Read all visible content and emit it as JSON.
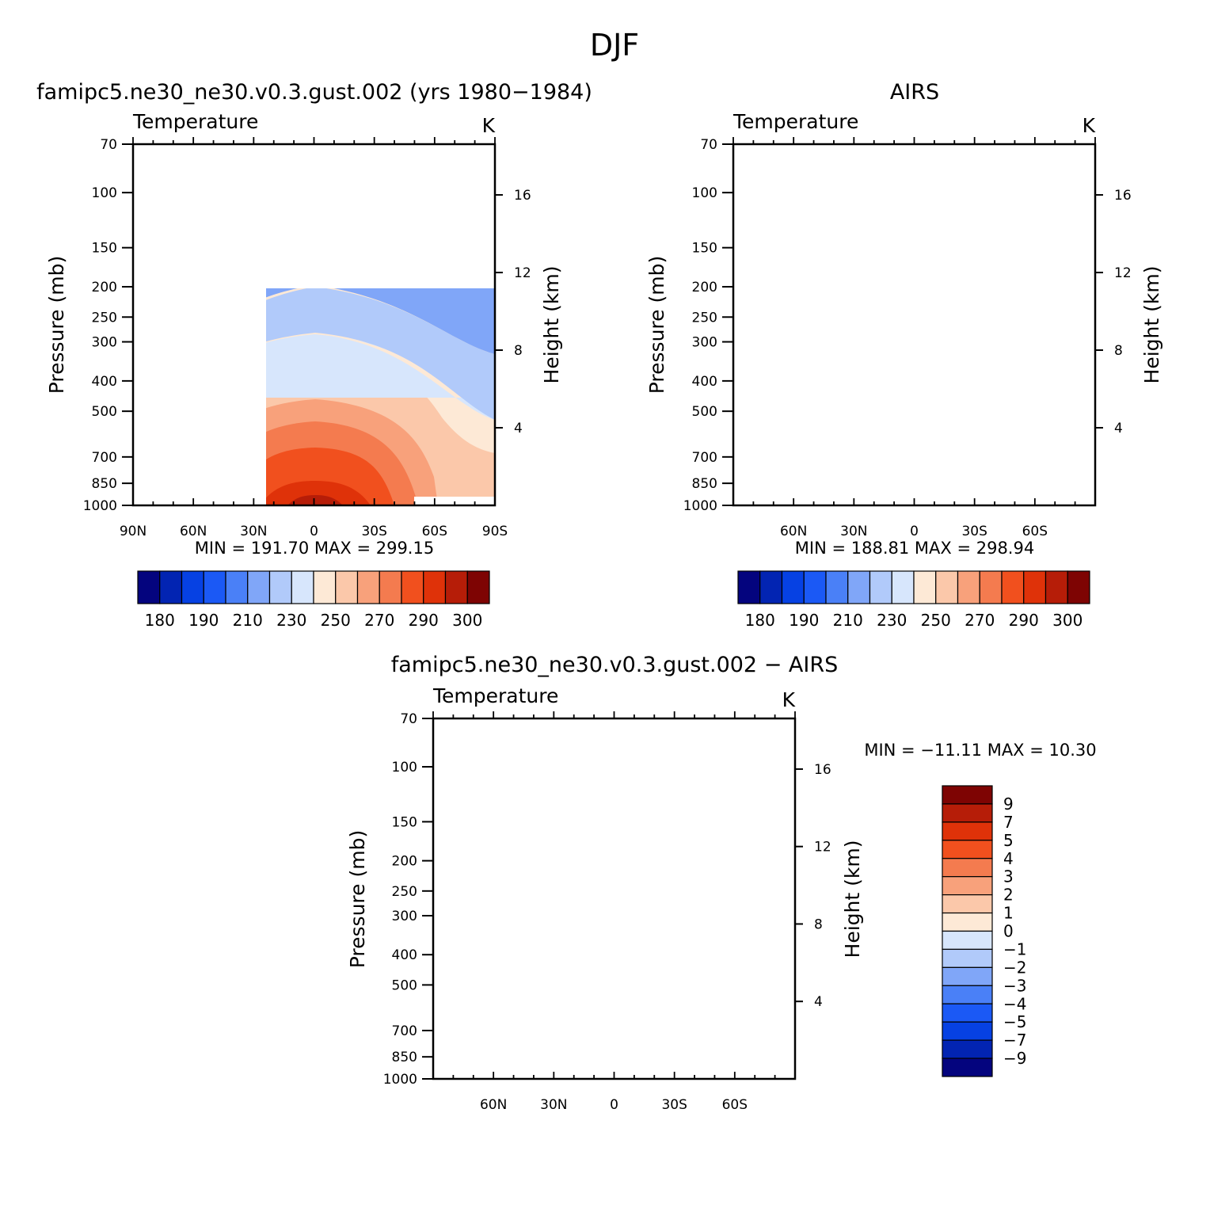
{
  "figure": {
    "title": "DJF"
  },
  "colors": {
    "temp_scale": [
      "#04047e",
      "#0224b2",
      "#0641e3",
      "#1b59f5",
      "#4a80f7",
      "#80a6f8",
      "#b1cafa",
      "#d7e6fc",
      "#fde9d6",
      "#fbc8aa",
      "#f8a17b",
      "#f47b4f",
      "#f1501e",
      "#df3209",
      "#b61d08",
      "#7e0403"
    ],
    "diff_scale": [
      "#04047e",
      "#0224b2",
      "#0641e3",
      "#1b59f5",
      "#4a80f7",
      "#80a6f8",
      "#b1cafa",
      "#d7e6fc",
      "#fde9d6",
      "#fbc8aa",
      "#f8a17b",
      "#f47b4f",
      "#f1501e",
      "#df3209",
      "#b61d08",
      "#7e0403"
    ]
  },
  "panels": [
    {
      "title": "famipc5.ne30_ne30.v0.3.gust.002 (yrs 1980−1984)",
      "variable": "Temperature",
      "units": "K",
      "ylabel": "Pressure (mb)",
      "y2label": "Height (km)",
      "minmax": "MIN = 191.70   MAX = 299.15",
      "cbar_labels": [
        "180",
        "190",
        "210",
        "230",
        "250",
        "270",
        "290",
        "300"
      ]
    },
    {
      "title": "AIRS",
      "variable": "Temperature",
      "units": "K",
      "ylabel": "Pressure (mb)",
      "y2label": "Height (km)",
      "minmax": "MIN = 188.81   MAX = 298.94",
      "cbar_labels": [
        "180",
        "190",
        "210",
        "230",
        "250",
        "270",
        "290",
        "300"
      ]
    },
    {
      "title": "famipc5.ne30_ne30.v0.3.gust.002 − AIRS",
      "variable": "Temperature",
      "units": "K",
      "ylabel": "Pressure (mb)",
      "y2label": "Height (km)",
      "minmax": "MIN = −11.11   MAX =  10.30",
      "cbar_labels": [
        "9",
        "7",
        "5",
        "4",
        "3",
        "2",
        "1",
        "0",
        "−1",
        "−2",
        "−3",
        "−4",
        "−5",
        "−7",
        "−9"
      ]
    }
  ],
  "chart_data": [
    {
      "type": "heatmap",
      "title": "famipc5.ne30_ne30.v0.3.gust.002 (yrs 1980−1984)",
      "xlabel": "",
      "ylabel": "Pressure (mb)",
      "y2label": "Height (km)",
      "x_ticks": [
        "90N",
        "60N",
        "30N",
        "0",
        "30S",
        "60S",
        "90S"
      ],
      "x_tick_values": [
        90,
        60,
        30,
        0,
        -30,
        -60,
        -90
      ],
      "xlim": [
        90,
        -90
      ],
      "y_ticks": [
        "70",
        "100",
        "150",
        "200",
        "250",
        "300",
        "400",
        "500",
        "700",
        "850",
        "1000"
      ],
      "y_scale": "log",
      "ylim": [
        1000,
        70
      ],
      "y2_ticks": [
        "4",
        "8",
        "12",
        "16"
      ],
      "contour_levels": [
        180,
        185,
        190,
        200,
        210,
        220,
        230,
        240,
        250,
        260,
        270,
        280,
        290,
        295,
        300
      ],
      "min": 191.7,
      "max": 299.15,
      "units": "K"
    },
    {
      "type": "heatmap",
      "title": "AIRS",
      "xlabel": "",
      "ylabel": "Pressure (mb)",
      "y2label": "Height (km)",
      "x_ticks": [
        "60N",
        "30N",
        "0",
        "30S",
        "60S"
      ],
      "x_tick_values": [
        60,
        30,
        0,
        -30,
        -60
      ],
      "xlim": [
        90,
        -90
      ],
      "y_ticks": [
        "70",
        "100",
        "150",
        "200",
        "250",
        "300",
        "400",
        "500",
        "700",
        "850",
        "1000"
      ],
      "y_scale": "log",
      "ylim": [
        1000,
        70
      ],
      "y2_ticks": [
        "4",
        "8",
        "12",
        "16"
      ],
      "contour_levels": [
        180,
        185,
        190,
        200,
        210,
        220,
        230,
        240,
        250,
        260,
        270,
        280,
        290,
        295,
        300
      ],
      "min": 188.81,
      "max": 298.94,
      "units": "K"
    },
    {
      "type": "heatmap",
      "title": "famipc5.ne30_ne30.v0.3.gust.002 − AIRS",
      "xlabel": "",
      "ylabel": "Pressure (mb)",
      "y2label": "Height (km)",
      "x_ticks": [
        "60N",
        "30N",
        "0",
        "30S",
        "60S"
      ],
      "x_tick_values": [
        60,
        30,
        0,
        -30,
        -60
      ],
      "xlim": [
        90,
        -90
      ],
      "y_ticks": [
        "70",
        "100",
        "150",
        "200",
        "250",
        "300",
        "400",
        "500",
        "700",
        "850",
        "1000"
      ],
      "y_scale": "log",
      "ylim": [
        1000,
        70
      ],
      "y2_ticks": [
        "4",
        "8",
        "12",
        "16"
      ],
      "contour_levels": [
        -9,
        -7,
        -5,
        -4,
        -3,
        -2,
        -1,
        0,
        1,
        2,
        3,
        4,
        5,
        7,
        9
      ],
      "min": -11.11,
      "max": 10.3,
      "units": "K"
    }
  ]
}
